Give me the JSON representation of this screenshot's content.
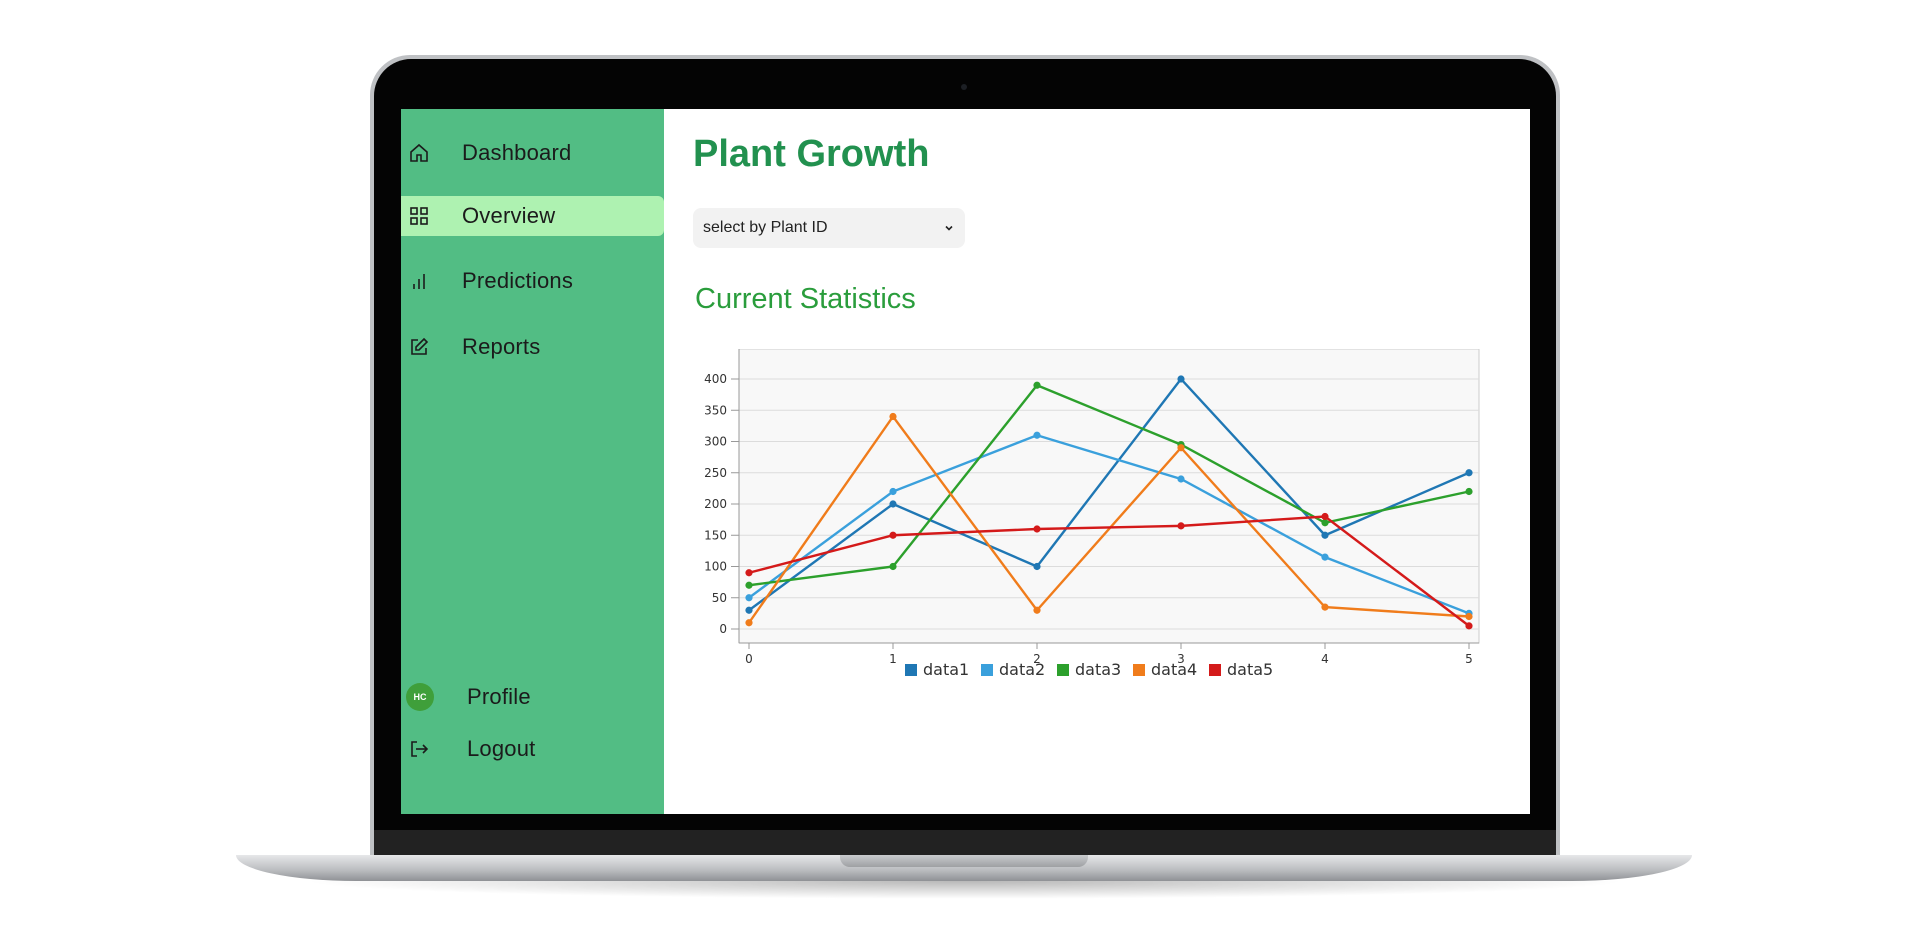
{
  "sidebar": {
    "items": [
      {
        "label": "Dashboard",
        "icon": "home-icon"
      },
      {
        "label": "Overview",
        "icon": "grid-icon"
      },
      {
        "label": "Predictions",
        "icon": "bar-chart-icon"
      },
      {
        "label": "Reports",
        "icon": "edit-icon"
      }
    ],
    "active_item": "Overview",
    "profile": {
      "avatar_initials": "HC",
      "label": "Profile"
    },
    "logout": {
      "label": "Logout",
      "icon": "logout-icon"
    }
  },
  "main": {
    "title": "Plant Growth",
    "select": {
      "value": "select by Plant ID"
    },
    "section_title": "Current Statistics"
  },
  "colors": {
    "sidebar": "#52bd84",
    "active_item": "#aef2b1",
    "title": "#22914f",
    "section_title": "#2a9d3c",
    "avatar": "#3f9f3a"
  },
  "chart_data": {
    "type": "line",
    "x": [
      0,
      1,
      2,
      3,
      4,
      5
    ],
    "xlim": [
      0,
      5
    ],
    "ylim": [
      0,
      400
    ],
    "yticks": [
      0,
      50,
      100,
      150,
      200,
      250,
      300,
      350,
      400
    ],
    "grid": true,
    "legend_position": "bottom",
    "series": [
      {
        "name": "data1",
        "color": "#1f77b4",
        "values": [
          30,
          200,
          100,
          400,
          150,
          250
        ]
      },
      {
        "name": "data2",
        "color": "#3aa0dc",
        "values": [
          50,
          220,
          310,
          240,
          115,
          25
        ]
      },
      {
        "name": "data3",
        "color": "#2ca02c",
        "values": [
          70,
          100,
          390,
          295,
          170,
          220
        ]
      },
      {
        "name": "data4",
        "color": "#f07c1b",
        "values": [
          10,
          340,
          30,
          290,
          35,
          20
        ]
      },
      {
        "name": "data5",
        "color": "#d41a1a",
        "values": [
          90,
          150,
          160,
          165,
          180,
          5
        ]
      }
    ]
  }
}
